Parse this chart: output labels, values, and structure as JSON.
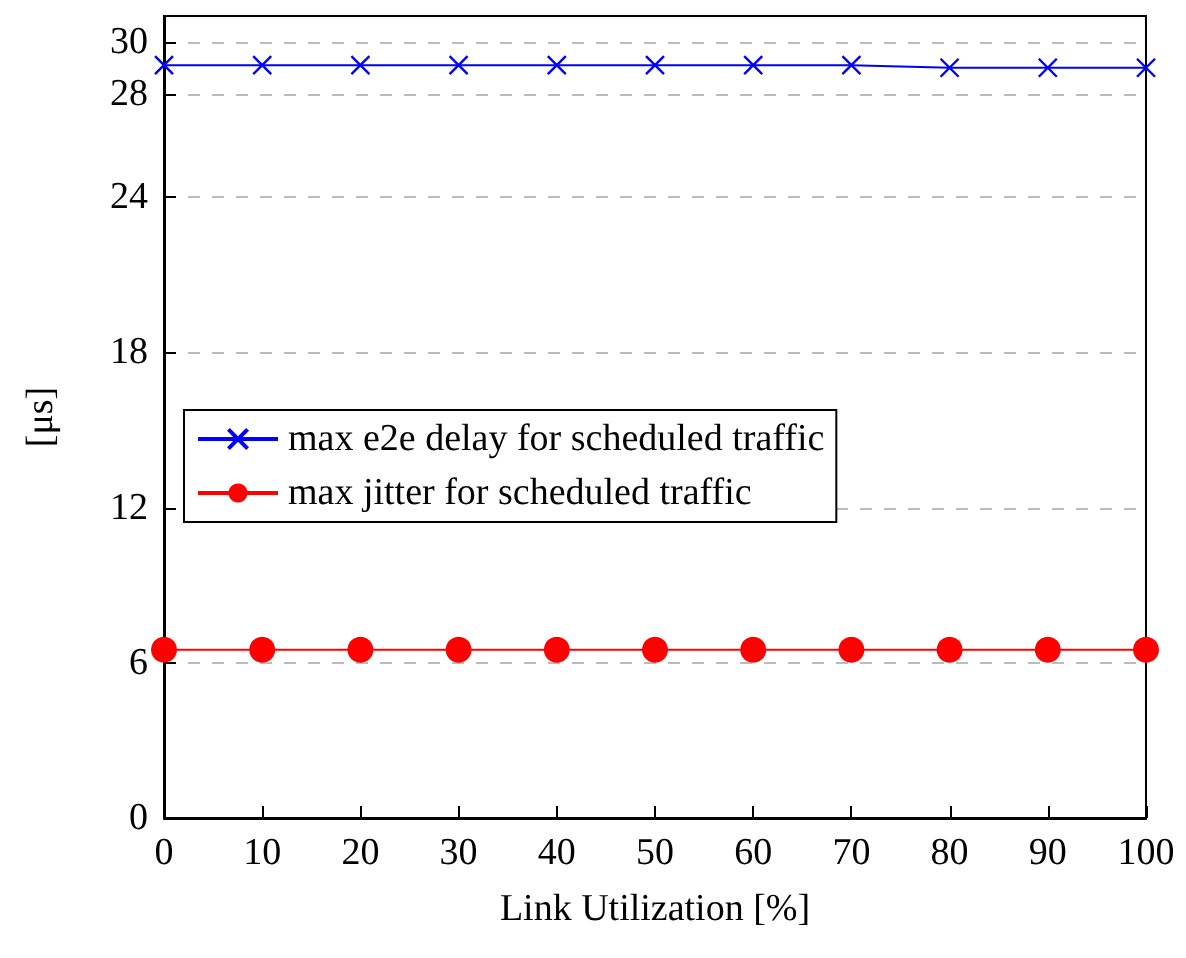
{
  "chart_data": {
    "type": "line",
    "xlabel": "Link Utilization [%]",
    "ylabel": "[μs]",
    "x": [
      0,
      10,
      20,
      30,
      40,
      50,
      60,
      70,
      80,
      90,
      100
    ],
    "series": [
      {
        "name": "max e2e delay for scheduled traffic",
        "color": "#0000ff",
        "marker": "cross",
        "values": [
          29.1,
          29.1,
          29.1,
          29.1,
          29.1,
          29.1,
          29.1,
          29.1,
          29.0,
          29.0,
          29.0
        ]
      },
      {
        "name": "max jitter for scheduled traffic",
        "color": "#ff0000",
        "marker": "circle",
        "values": [
          6.5,
          6.5,
          6.5,
          6.5,
          6.5,
          6.5,
          6.5,
          6.5,
          6.5,
          6.5,
          6.5
        ]
      }
    ],
    "xlim": [
      0,
      100
    ],
    "xticks": [
      0,
      10,
      20,
      30,
      40,
      50,
      60,
      70,
      80,
      90,
      100
    ],
    "ylim": [
      0,
      31
    ],
    "yticks": [
      0,
      6,
      12,
      18,
      24,
      28,
      30
    ],
    "grid": "y",
    "legend": "left"
  }
}
